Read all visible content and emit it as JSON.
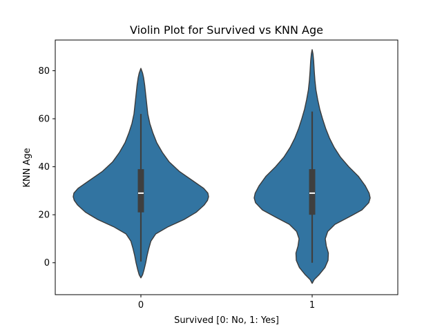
{
  "chart_data": {
    "type": "violin",
    "title": "Violin Plot for Survived vs KNN Age",
    "xlabel": "Survived [0: No, 1: Yes]",
    "ylabel": "KNN Age",
    "categories": [
      "0",
      "1"
    ],
    "ylim": [
      -13.3,
      92.8
    ],
    "yticks": [
      0,
      20,
      40,
      60,
      80
    ],
    "grid": false,
    "violin_color": "#3274a1",
    "edge_color": "#3a3a3a",
    "box_color": "#3f3f3f",
    "median_color": "#ffffff",
    "violins": [
      {
        "category": "0",
        "kde_extent": [
          -6.3,
          81.0
        ],
        "whiskers": [
          0.5,
          62.0
        ],
        "quartiles": [
          21.0,
          39.0
        ],
        "median": 29.0,
        "profile": [
          [
            -6.3,
            0.0
          ],
          [
            -5.0,
            0.025
          ],
          [
            -3.0,
            0.045
          ],
          [
            0.0,
            0.07
          ],
          [
            3.0,
            0.09
          ],
          [
            6.0,
            0.115
          ],
          [
            9.0,
            0.145
          ],
          [
            12.0,
            0.215
          ],
          [
            15.0,
            0.395
          ],
          [
            18.0,
            0.625
          ],
          [
            21.0,
            0.8
          ],
          [
            24.0,
            0.915
          ],
          [
            26.0,
            0.965
          ],
          [
            27.5,
            0.98
          ],
          [
            29.0,
            0.97
          ],
          [
            31.0,
            0.91
          ],
          [
            34.0,
            0.76
          ],
          [
            38.0,
            0.56
          ],
          [
            42.0,
            0.41
          ],
          [
            46.0,
            0.31
          ],
          [
            50.0,
            0.23
          ],
          [
            54.0,
            0.175
          ],
          [
            58.0,
            0.13
          ],
          [
            62.0,
            0.1
          ],
          [
            66.0,
            0.085
          ],
          [
            70.0,
            0.07
          ],
          [
            74.0,
            0.055
          ],
          [
            77.0,
            0.04
          ],
          [
            79.0,
            0.025
          ],
          [
            81.0,
            0.0
          ]
        ]
      },
      {
        "category": "1",
        "kde_extent": [
          -8.6,
          88.8
        ],
        "whiskers": [
          0.0,
          63.0
        ],
        "quartiles": [
          20.0,
          39.0
        ],
        "median": 29.0,
        "profile": [
          [
            -8.6,
            0.0
          ],
          [
            -7.0,
            0.03
          ],
          [
            -5.0,
            0.1
          ],
          [
            -2.0,
            0.185
          ],
          [
            1.0,
            0.23
          ],
          [
            4.0,
            0.235
          ],
          [
            7.0,
            0.205
          ],
          [
            10.0,
            0.19
          ],
          [
            13.0,
            0.225
          ],
          [
            16.0,
            0.33
          ],
          [
            19.0,
            0.53
          ],
          [
            22.0,
            0.72
          ],
          [
            25.0,
            0.82
          ],
          [
            27.0,
            0.84
          ],
          [
            29.0,
            0.825
          ],
          [
            32.0,
            0.77
          ],
          [
            36.0,
            0.67
          ],
          [
            40.0,
            0.53
          ],
          [
            44.0,
            0.41
          ],
          [
            48.0,
            0.32
          ],
          [
            52.0,
            0.25
          ],
          [
            56.0,
            0.195
          ],
          [
            60.0,
            0.15
          ],
          [
            64.0,
            0.11
          ],
          [
            68.0,
            0.08
          ],
          [
            72.0,
            0.055
          ],
          [
            76.0,
            0.04
          ],
          [
            80.0,
            0.03
          ],
          [
            84.0,
            0.022
          ],
          [
            87.0,
            0.012
          ],
          [
            88.8,
            0.0
          ]
        ]
      }
    ]
  }
}
